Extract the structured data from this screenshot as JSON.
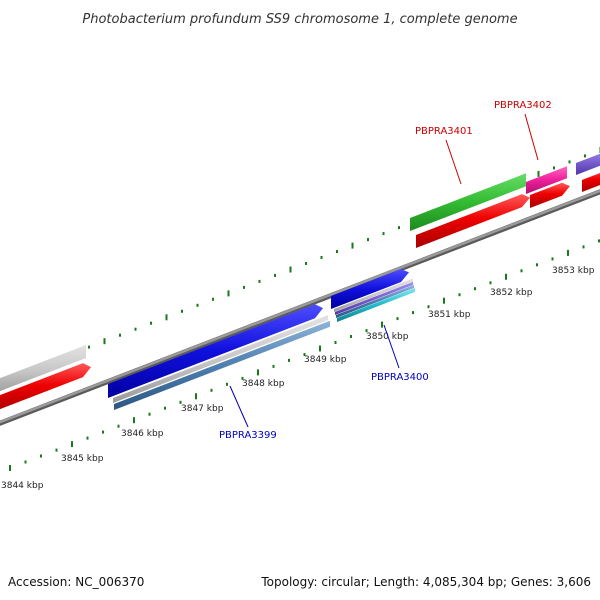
{
  "title": "Photobacterium profundum SS9 chromosome 1, complete genome",
  "footer": {
    "accession": "Accession: NC_006370",
    "summary": "Topology: circular; Length: 4,085,304 bp; Genes: 3,606"
  },
  "ticks": [
    {
      "label": "3844 kbp"
    },
    {
      "label": "3845 kbp"
    },
    {
      "label": "3846 kbp"
    },
    {
      "label": "3847 kbp"
    },
    {
      "label": "3848 kbp"
    },
    {
      "label": "3849 kbp"
    },
    {
      "label": "3850 kbp"
    },
    {
      "label": "3851 kbp"
    },
    {
      "label": "3852 kbp"
    },
    {
      "label": "3853 kbp"
    }
  ],
  "gene_labels": [
    {
      "name": "PBPRA3399",
      "color": "#0000bb"
    },
    {
      "name": "PBPRA3400",
      "color": "#0000bb"
    },
    {
      "name": "PBPRA3401",
      "color": "#cc0000"
    },
    {
      "name": "PBPRA3402",
      "color": "#cc0000"
    }
  ],
  "colors": {
    "backbone": "#808080",
    "tick": "#1a7a1a",
    "blue_gene": "#1010dd",
    "red_gene": "#ee0000",
    "green_gene": "#33bb33",
    "pink_gene": "#ee1f9a",
    "purple_gene": "#7a5ed0",
    "gray_gene": "#c8c8c8",
    "steel_gene": "#4d7fb0",
    "cyan_gene": "#22bbcc"
  }
}
